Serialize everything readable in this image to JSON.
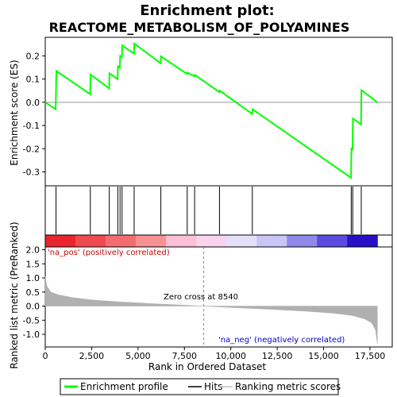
{
  "chart_data": {
    "type": "line",
    "title_line1": "Enrichment plot:",
    "title_line2": "REACTOME_METABOLISM_OF_POLYAMINES",
    "top_panel": {
      "ylabel": "Enrichment score (ES)",
      "ylim": [
        -0.36,
        0.28
      ],
      "yticks": [
        -0.3,
        -0.2,
        -0.1,
        0.0,
        0.1,
        0.2
      ],
      "ytick_labels": [
        "-0.3",
        "-0.2",
        "-0.1",
        "0.0",
        "0.1",
        "0.2"
      ],
      "color": "#00ff00",
      "x": [
        0,
        560,
        600,
        2420,
        2440,
        3440,
        3460,
        3900,
        3920,
        4020,
        4040,
        4130,
        4150,
        4780,
        4800,
        6220,
        6240,
        7640,
        7660,
        8040,
        8060,
        9380,
        9400,
        11150,
        11170,
        16480,
        16500,
        16560,
        16580,
        17020,
        17040,
        17900
      ],
      "values": [
        0.0,
        -0.03,
        0.135,
        0.035,
        0.12,
        0.06,
        0.125,
        0.1,
        0.155,
        0.15,
        0.2,
        0.195,
        0.245,
        0.21,
        0.253,
        0.168,
        0.198,
        0.122,
        0.128,
        0.112,
        0.118,
        0.044,
        0.05,
        -0.05,
        -0.03,
        -0.325,
        -0.2,
        -0.203,
        -0.07,
        -0.095,
        0.052,
        0.0
      ]
    },
    "hits": [
      580,
      2430,
      3450,
      3910,
      4030,
      4140,
      4790,
      6230,
      7650,
      8050,
      9390,
      11160,
      16490,
      16570,
      17030
    ],
    "bottom_panel": {
      "ylabel": "Ranked list metric (PreRanked)",
      "xlabel": "Rank in Ordered Dataset",
      "ylim": [
        -1.45,
        2.1
      ],
      "yticks": [
        -1.0,
        -0.5,
        0.0,
        0.5,
        1.0,
        1.5,
        2.0
      ],
      "ytick_labels": [
        "-1.0",
        "-0.5",
        "0.0",
        "0.5",
        "1.0",
        "1.5",
        "2.0"
      ],
      "x": [
        0,
        80,
        300,
        700,
        1500,
        2500,
        4000,
        6000,
        8540,
        10000,
        12000,
        14000,
        15500,
        16500,
        17200,
        17600,
        17800,
        17900
      ],
      "values": [
        1.05,
        0.72,
        0.5,
        0.4,
        0.3,
        0.22,
        0.15,
        0.08,
        0.0,
        -0.05,
        -0.11,
        -0.18,
        -0.25,
        -0.33,
        -0.45,
        -0.6,
        -0.85,
        -1.35
      ],
      "color": "#b0b0b0",
      "pos_label": "'na_pos' (positively correlated)",
      "neg_label": "'na_neg' (negatively correlated)",
      "zero_cross_label": "Zero cross at 8540",
      "zero_cross": 8540
    },
    "xlim": [
      0,
      18700
    ],
    "xticks": [
      0,
      2500,
      5000,
      7500,
      10000,
      12500,
      15000,
      17500
    ],
    "xtick_labels": [
      "0",
      "2,500",
      "5,000",
      "7,500",
      "10,000",
      "12,500",
      "15,000",
      "17,500"
    ],
    "n_genes": 17900,
    "colorbar_colors": [
      "#e8242c",
      "#f04a4e",
      "#f36d70",
      "#f79193",
      "#fbbfd6",
      "#f9d4ee",
      "#e3e0f8",
      "#c9c6f6",
      "#8f89ea",
      "#5a4cde",
      "#2a0fc8"
    ],
    "legend": [
      {
        "label": "Enrichment profile",
        "color": "#00ff00"
      },
      {
        "label": "Hits",
        "color": "#000000"
      },
      {
        "label": "Ranking metric scores",
        "color": "#c0c0c0"
      }
    ]
  }
}
